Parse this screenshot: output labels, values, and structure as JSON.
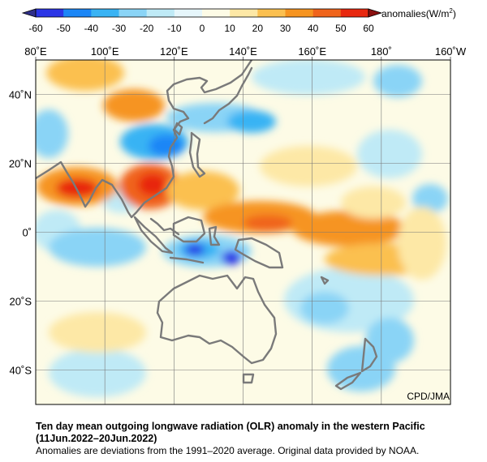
{
  "legend": {
    "ticks": [
      "-60",
      "-50",
      "-40",
      "-30",
      "-20",
      "-10",
      "0",
      "10",
      "20",
      "30",
      "40",
      "50",
      "60"
    ],
    "unit_prefix": "anomalies(W/m",
    "unit_sup": "2",
    "unit_suffix": ")",
    "colors": [
      "#2b35e6",
      "#1b86f6",
      "#39b3f4",
      "#8ad4f6",
      "#bfeaf6",
      "#e6f6fb",
      "#fdfbe6",
      "#fde8a6",
      "#fbc050",
      "#f69420",
      "#f0641b",
      "#e8280f"
    ]
  },
  "map": {
    "x_ticks": [
      "80˚E",
      "100˚E",
      "120˚E",
      "140˚E",
      "160˚E",
      "180˚",
      "160˚W"
    ],
    "y_ticks": [
      "40˚N",
      "20˚N",
      "0˚",
      "20˚S",
      "40˚S"
    ],
    "credit": "CPD/JMA",
    "ocean_color": "#fdfbe6",
    "land_outline_color": "#7a7a7a"
  },
  "caption": {
    "title": "Ten day mean outgoing longwave radiation (OLR) anomaly in the western Pacific",
    "period": "(11Jun.2022–20Jun.2022)",
    "note": "Anomalies are deviations from the 1991–2020 average. Original data provided by NOAA."
  }
}
